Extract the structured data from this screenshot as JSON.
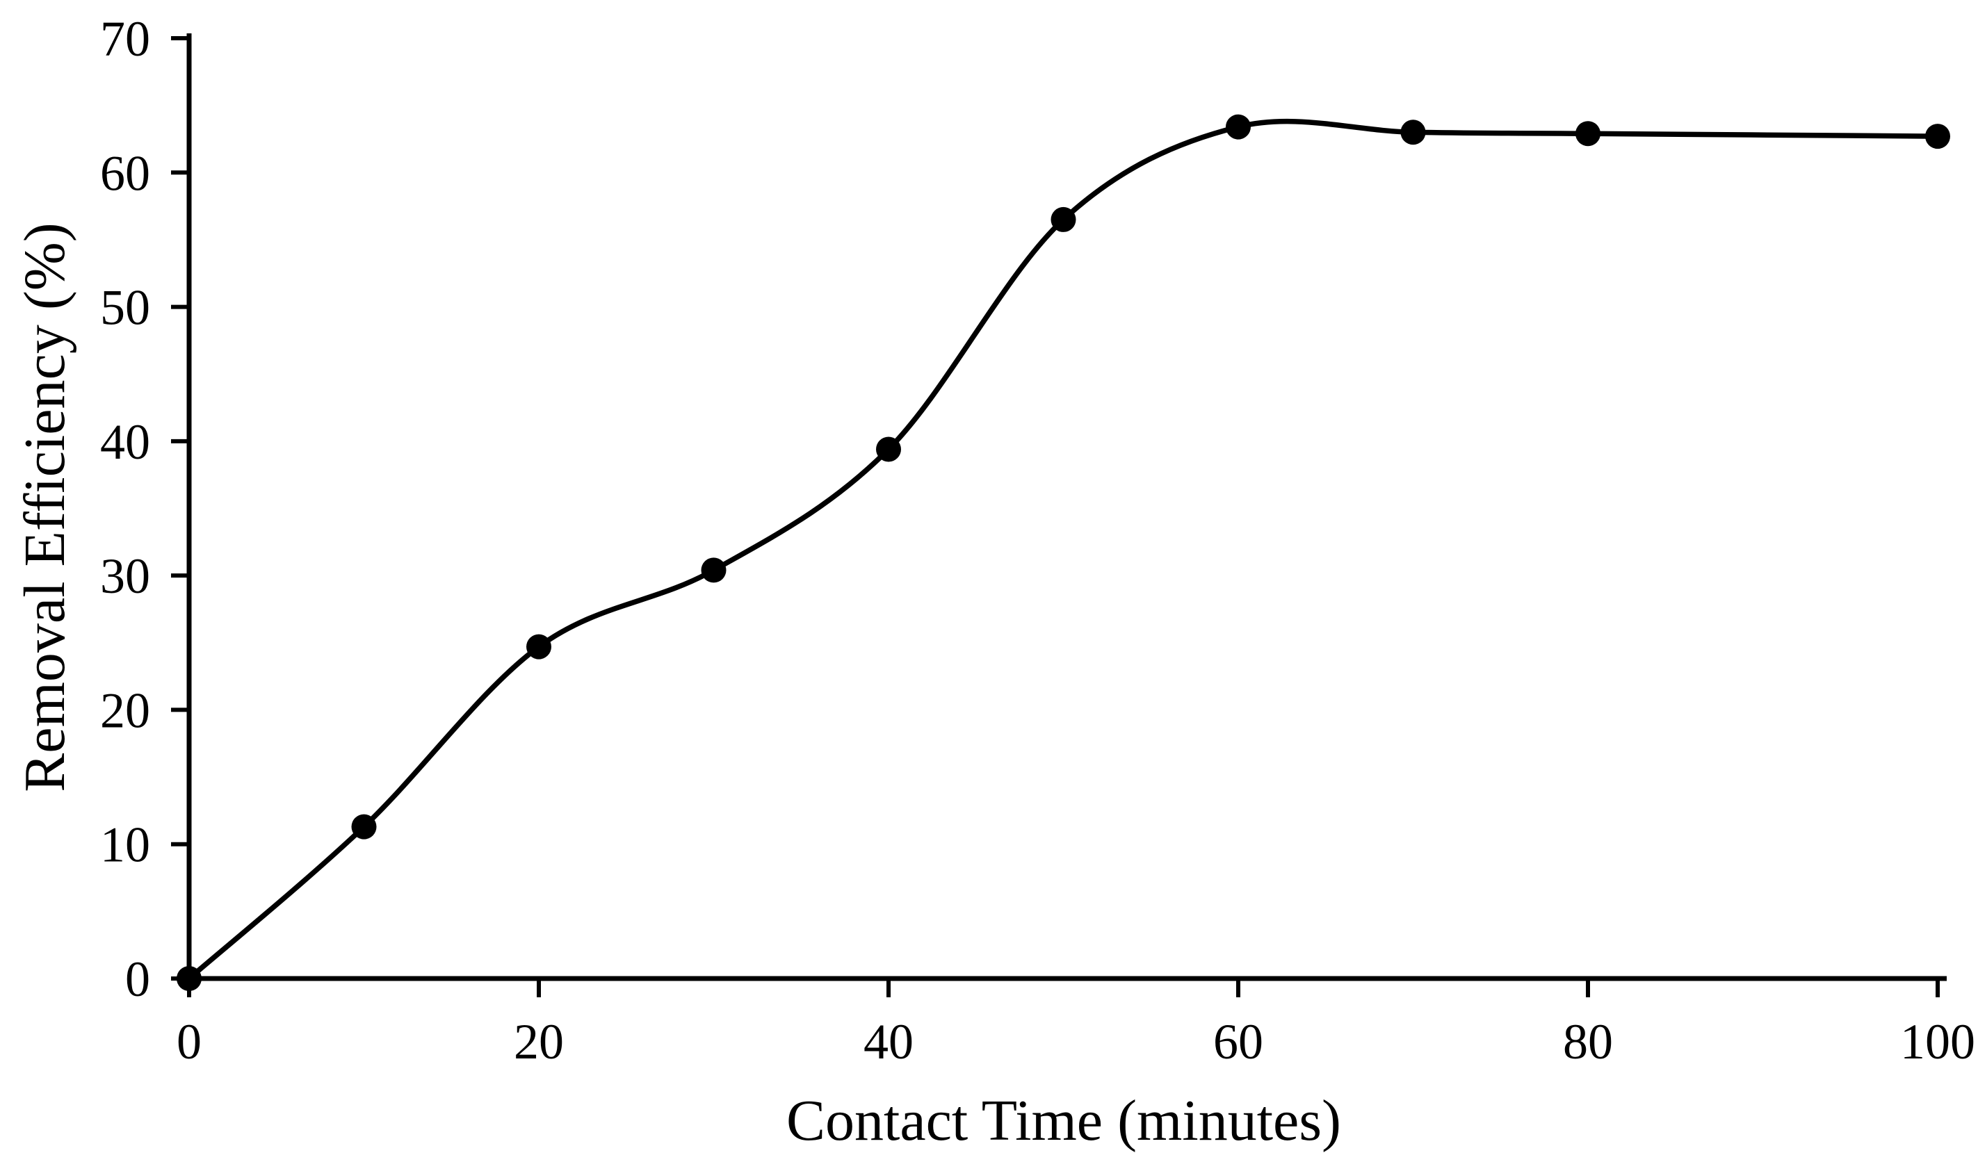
{
  "figure": {
    "background_color": "#ffffff",
    "ink_color": "#000000"
  },
  "chart_data": {
    "type": "line",
    "title": "",
    "xlabel": "Contact Time (minutes)",
    "ylabel": "Removal Efficiency (%)",
    "x": [
      0,
      10,
      20,
      30,
      40,
      50,
      60,
      70,
      80,
      100
    ],
    "y": [
      0,
      11.3,
      24.7,
      30.4,
      39.4,
      56.5,
      63.4,
      63.0,
      62.9,
      62.7
    ],
    "series_name": "Removal Efficiency",
    "xlim": [
      0,
      100
    ],
    "ylim": [
      0,
      70
    ],
    "x_ticks": [
      0,
      20,
      40,
      60,
      80,
      100
    ],
    "y_ticks": [
      0,
      10,
      20,
      30,
      40,
      50,
      60,
      70
    ],
    "grid": "off",
    "legend": "none",
    "line_style": "smooth",
    "marker": "filled-circle",
    "line_color": "#000000",
    "marker_color": "#000000"
  }
}
